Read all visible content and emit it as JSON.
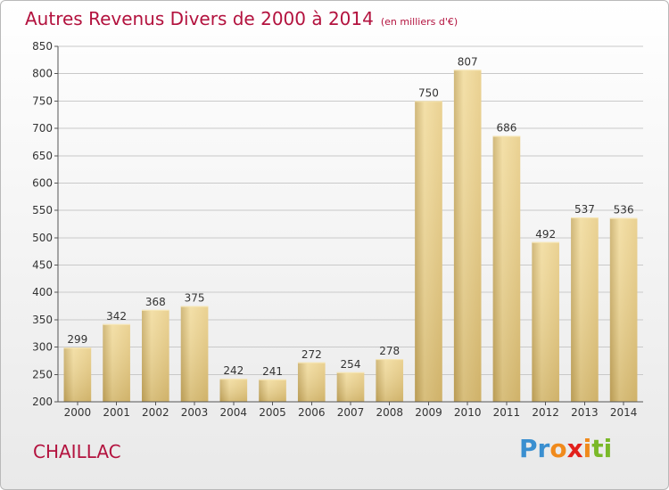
{
  "title": "Autres Revenus Divers de 2000 à 2014",
  "subtitle": "(en milliers d'€)",
  "commune": "CHAILLAC",
  "logo": {
    "letters": [
      {
        "char": "P",
        "color": "#3a8fd0"
      },
      {
        "char": "r",
        "color": "#3a8fd0"
      },
      {
        "char": "o",
        "color": "#f08a1c"
      },
      {
        "char": "x",
        "color": "#e2201c"
      },
      {
        "char": "i",
        "color": "#f08a1c"
      },
      {
        "char": "t",
        "color": "#7ab929"
      },
      {
        "char": "i",
        "color": "#7ab929"
      }
    ]
  },
  "chart_data": {
    "type": "bar",
    "title": "Autres Revenus Divers de 2000 à 2014",
    "subtitle": "(en milliers d'€)",
    "categories": [
      "2000",
      "2001",
      "2002",
      "2003",
      "2004",
      "2005",
      "2006",
      "2007",
      "2008",
      "2009",
      "2010",
      "2011",
      "2012",
      "2013",
      "2014"
    ],
    "values": [
      299,
      342,
      368,
      375,
      242,
      241,
      272,
      254,
      278,
      750,
      807,
      686,
      492,
      537,
      536
    ],
    "ylim": [
      200,
      850
    ],
    "yticks": [
      200,
      250,
      300,
      350,
      400,
      450,
      500,
      550,
      600,
      650,
      700,
      750,
      800,
      850
    ],
    "grid": true,
    "bar_color": "#e8cf8a"
  }
}
